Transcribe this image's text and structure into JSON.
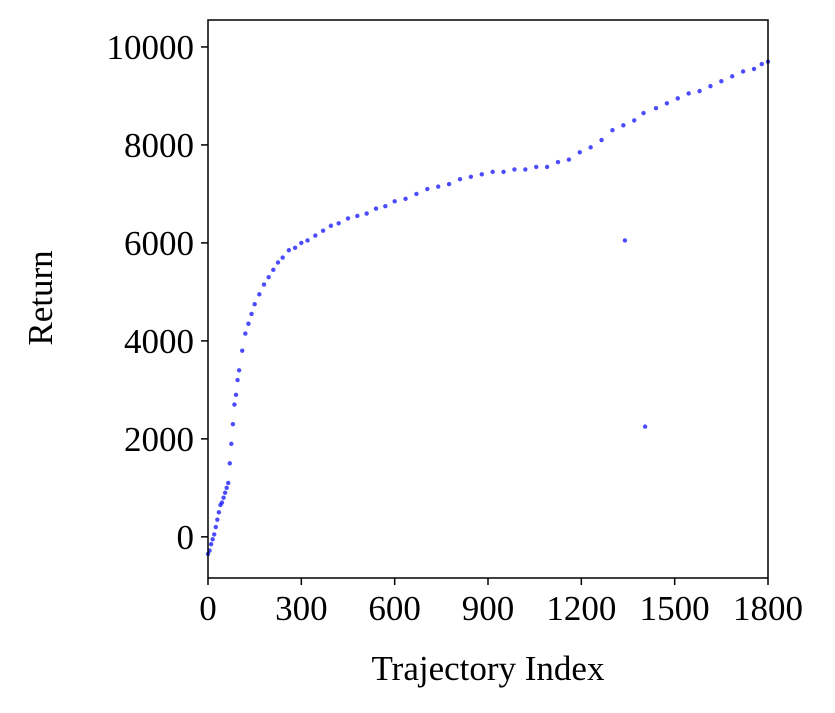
{
  "chart_data": {
    "type": "scatter",
    "xlabel": "Trajectory Index",
    "ylabel": "Return",
    "x": [
      0,
      5,
      10,
      15,
      20,
      25,
      30,
      35,
      40,
      45,
      50,
      55,
      60,
      65,
      70,
      75,
      80,
      85,
      90,
      95,
      100,
      110,
      120,
      130,
      140,
      150,
      165,
      180,
      195,
      210,
      225,
      240,
      260,
      280,
      300,
      320,
      345,
      370,
      395,
      420,
      450,
      480,
      510,
      540,
      570,
      600,
      635,
      670,
      705,
      740,
      775,
      810,
      845,
      880,
      915,
      950,
      985,
      1020,
      1055,
      1090,
      1125,
      1160,
      1195,
      1230,
      1265,
      1300,
      1335,
      1340,
      1370,
      1400,
      1405,
      1440,
      1475,
      1510,
      1545,
      1580,
      1615,
      1650,
      1685,
      1720,
      1755,
      1780,
      1800
    ],
    "series": [
      {
        "name": "Return",
        "color": "#0000ff",
        "values": [
          -350,
          -280,
          -150,
          -50,
          50,
          200,
          350,
          500,
          650,
          700,
          800,
          900,
          1000,
          1100,
          1500,
          1900,
          2300,
          2700,
          2900,
          3200,
          3400,
          3800,
          4150,
          4350,
          4550,
          4750,
          4950,
          5150,
          5300,
          5450,
          5600,
          5700,
          5850,
          5900,
          6000,
          6050,
          6150,
          6250,
          6350,
          6400,
          6500,
          6550,
          6600,
          6700,
          6750,
          6850,
          6900,
          7000,
          7100,
          7150,
          7200,
          7300,
          7350,
          7400,
          7450,
          7450,
          7500,
          7500,
          7550,
          7550,
          7650,
          7700,
          7850,
          7950,
          8100,
          8300,
          8400,
          6050,
          8500,
          8650,
          2250,
          8750,
          8850,
          8950,
          9050,
          9100,
          9200,
          9300,
          9400,
          9500,
          9550,
          9650,
          9700
        ]
      }
    ],
    "xlim": [
      0,
      1800
    ],
    "xticks": [
      0,
      300,
      600,
      900,
      1200,
      1500,
      1800
    ],
    "ylim": [
      -840,
      10550
    ],
    "yticks": [
      0,
      2000,
      4000,
      6000,
      8000,
      10000
    ]
  }
}
